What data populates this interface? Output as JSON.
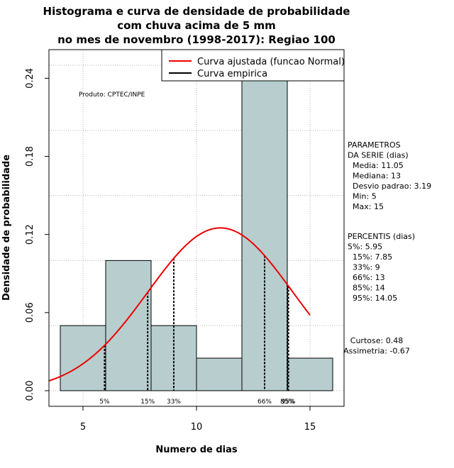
{
  "chart_data": {
    "type": "bar",
    "title_lines": [
      "Histograma e curva de densidade de probabilidade",
      "com chuva acima de 5 mm",
      "no mes de novembro (1998-2017): Regiao 100"
    ],
    "xlabel": "Numero de dias",
    "ylabel": "Densidade de probabilidade",
    "xlim": [
      3.5,
      16.5
    ],
    "ylim": [
      -0.012,
      0.262
    ],
    "x_ticks": [
      5,
      10,
      15
    ],
    "x_tick_labels": [
      "5",
      "10",
      "15"
    ],
    "y_ticks": [
      0.0,
      0.06,
      0.12,
      0.18,
      0.24
    ],
    "y_tick_labels": [
      "0.00",
      "0.06",
      "0.12",
      "0.18",
      "0.24"
    ],
    "grid_x": [
      5,
      10,
      15
    ],
    "grid_y": [
      0.0,
      0.05,
      0.1,
      0.15,
      0.2,
      0.25
    ],
    "bins": [
      {
        "start": 4,
        "end": 6,
        "density": 0.05
      },
      {
        "start": 6,
        "end": 8,
        "density": 0.1
      },
      {
        "start": 8,
        "end": 10,
        "density": 0.05
      },
      {
        "start": 10,
        "end": 12,
        "density": 0.025
      },
      {
        "start": 12,
        "end": 14,
        "density": 0.25
      },
      {
        "start": 14,
        "end": 16,
        "density": 0.025
      }
    ],
    "bar_color": "#b8cece",
    "curve_color": "#ee0000",
    "normal_fit": {
      "mean": 11.05,
      "sd": 3.19,
      "from": 3.5,
      "to": 15
    },
    "percentiles": [
      {
        "label": "5%",
        "value": 5.95
      },
      {
        "label": "15%",
        "value": 7.85
      },
      {
        "label": "33%",
        "value": 9
      },
      {
        "label": "66%",
        "value": 13
      },
      {
        "label": "85%",
        "value": 14
      },
      {
        "label": "95%",
        "value": 14.05
      }
    ],
    "legend": {
      "position": "top-right",
      "entries": [
        {
          "label": "Curva ajustada (funcao Normal)",
          "color": "#ee0000"
        },
        {
          "label": "Curva empirica",
          "color": "#000000"
        }
      ]
    },
    "product_label": "Produto: CPTEC/INPE",
    "params_block": [
      "PARAMETROS",
      "DA SERIE (dias)",
      "Media: 11.05",
      "Mediana: 13",
      "Desvio padrao: 3.19",
      "Min: 5",
      "Max: 15"
    ],
    "percentis_block": [
      "PERCENTIS (dias)",
      "5%: 5.95",
      "15%: 7.85",
      "33%: 9",
      "66%: 13",
      "85%: 14",
      "95%: 14.05"
    ],
    "shape_block": [
      "Curtose: 0.48",
      "Assimetria: -0.67"
    ]
  }
}
